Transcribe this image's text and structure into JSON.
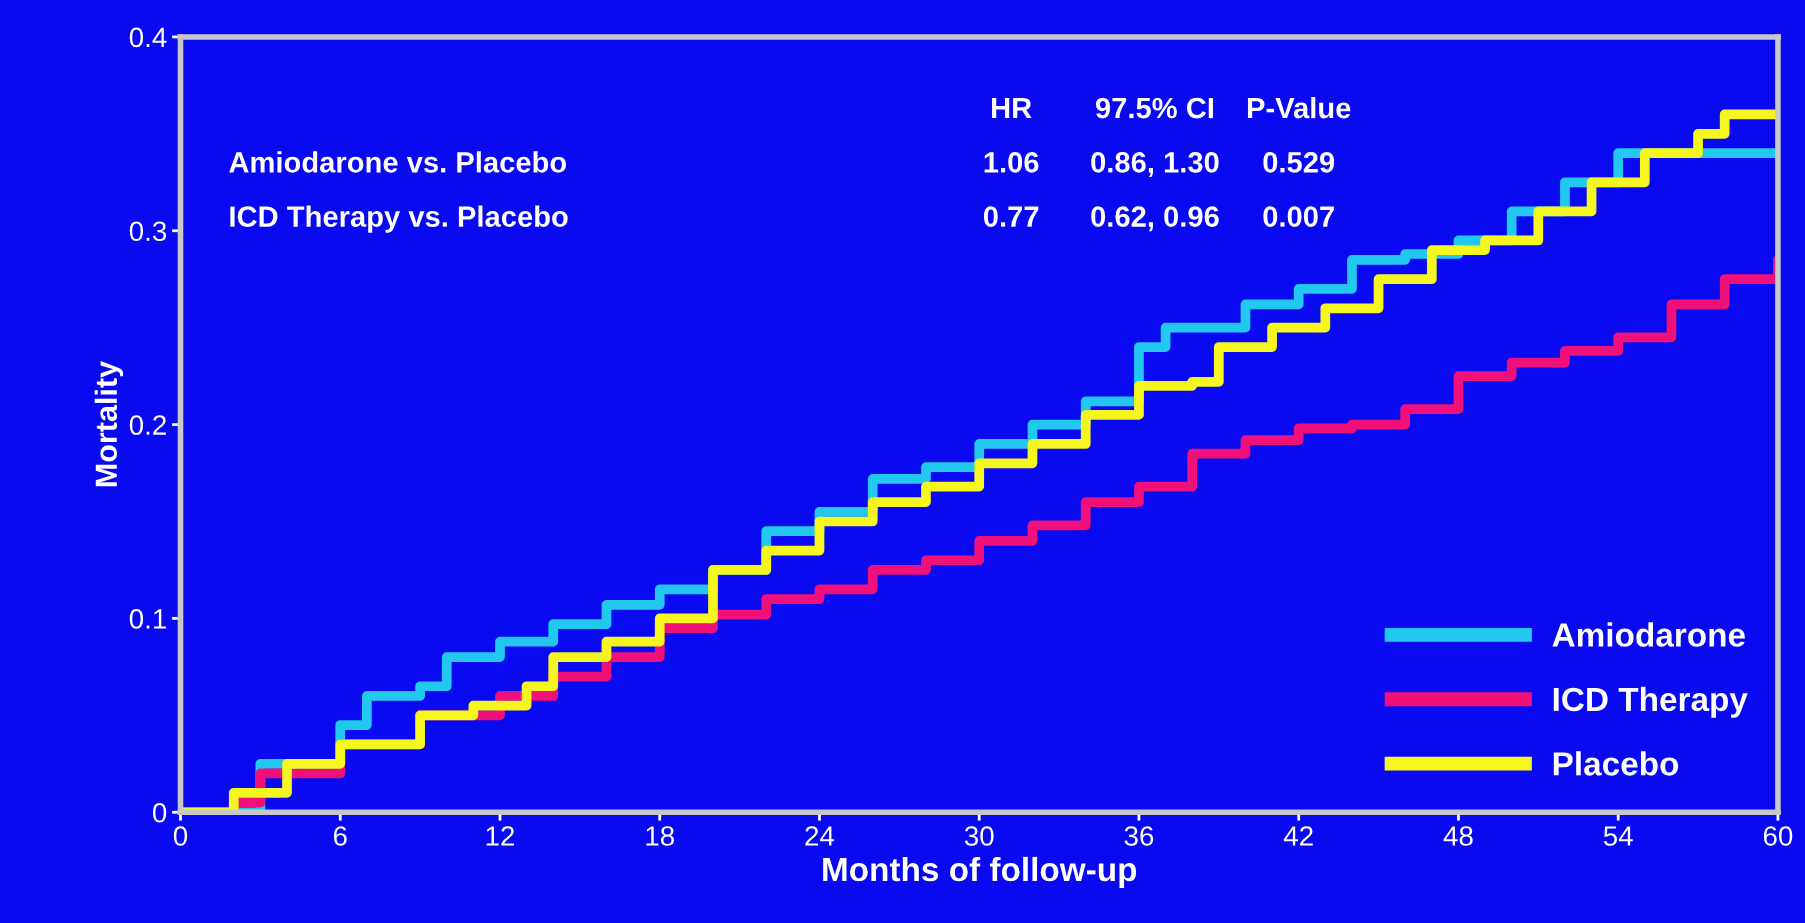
{
  "chart_data": {
    "type": "step",
    "xlabel": "Months of follow-up",
    "ylabel": "Mortality",
    "xlim": [
      0,
      60
    ],
    "ylim": [
      0,
      0.4
    ],
    "xticks": [
      0,
      6,
      12,
      18,
      24,
      30,
      36,
      42,
      48,
      54,
      60
    ],
    "yticks": [
      0,
      0.1,
      0.2,
      0.3,
      0.4
    ],
    "grid": false,
    "legend": "bottom right",
    "annotations": [
      "HR",
      "97.5% CI",
      "P-Value",
      "Amiodarone vs. Placebo",
      "1.06",
      "0.86, 1.30",
      "0.529",
      "ICD Therapy vs. Placebo",
      "0.77",
      "0.62, 0.96",
      "0.007"
    ],
    "series": [
      {
        "name": "Amiodarone",
        "color": "#22c8f0",
        "x": [
          0,
          3,
          6,
          7,
          9,
          10,
          12,
          14,
          16,
          18,
          20,
          22,
          24,
          26,
          28,
          30,
          32,
          34,
          36,
          37,
          40,
          42,
          44,
          46,
          48,
          50,
          52,
          54,
          60
        ],
        "values": [
          0,
          0.025,
          0.045,
          0.06,
          0.065,
          0.08,
          0.088,
          0.097,
          0.107,
          0.115,
          0.125,
          0.145,
          0.155,
          0.172,
          0.178,
          0.19,
          0.2,
          0.212,
          0.24,
          0.25,
          0.262,
          0.27,
          0.285,
          0.288,
          0.295,
          0.31,
          0.325,
          0.34,
          0.34
        ]
      },
      {
        "name": "ICD Therapy",
        "color": "#f0107a",
        "x": [
          0,
          2,
          3,
          6,
          9,
          12,
          14,
          16,
          18,
          20,
          22,
          24,
          26,
          28,
          30,
          32,
          34,
          36,
          38,
          40,
          42,
          44,
          46,
          48,
          50,
          52,
          54,
          56,
          58,
          60
        ],
        "values": [
          0,
          0.005,
          0.02,
          0.035,
          0.05,
          0.06,
          0.07,
          0.08,
          0.095,
          0.102,
          0.11,
          0.115,
          0.125,
          0.13,
          0.14,
          0.148,
          0.16,
          0.168,
          0.185,
          0.192,
          0.198,
          0.2,
          0.208,
          0.225,
          0.232,
          0.238,
          0.245,
          0.262,
          0.275,
          0.285
        ]
      },
      {
        "name": "Placebo",
        "color": "#f5f520",
        "x": [
          0,
          2,
          4,
          6,
          9,
          11,
          13,
          14,
          16,
          18,
          20,
          22,
          24,
          26,
          28,
          30,
          32,
          34,
          36,
          38,
          39,
          41,
          43,
          45,
          47,
          49,
          51,
          53,
          55,
          57,
          58,
          60
        ],
        "values": [
          0,
          0.01,
          0.025,
          0.035,
          0.05,
          0.055,
          0.065,
          0.08,
          0.088,
          0.1,
          0.125,
          0.135,
          0.15,
          0.16,
          0.168,
          0.18,
          0.19,
          0.205,
          0.22,
          0.222,
          0.24,
          0.25,
          0.26,
          0.275,
          0.29,
          0.295,
          0.31,
          0.325,
          0.34,
          0.35,
          0.36,
          0.36
        ]
      }
    ]
  }
}
